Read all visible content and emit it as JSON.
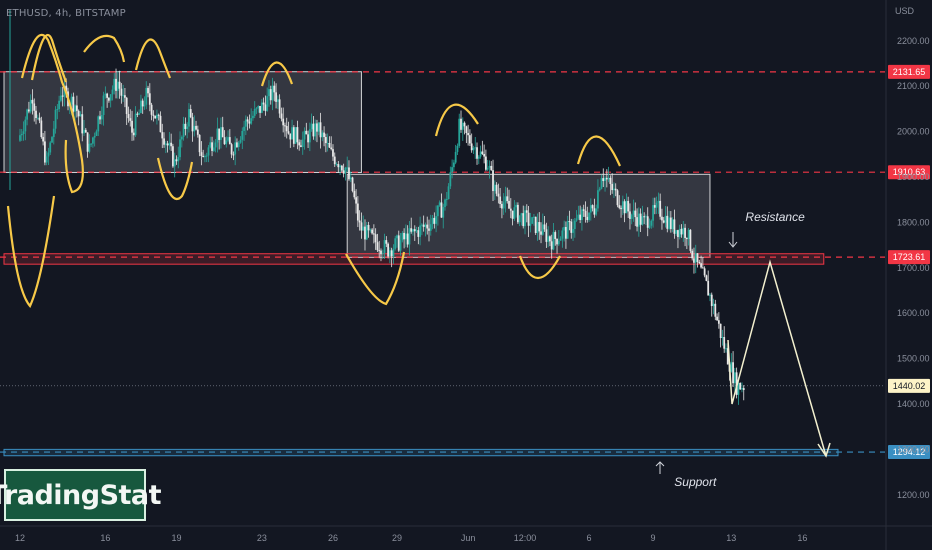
{
  "header": {
    "ticker": "ETHUSD, 4h, BITSTAMP",
    "currency": "USD"
  },
  "logo": {
    "text": "TradingStat"
  },
  "chart_data": {
    "type": "candlestick",
    "symbol": "ETHUSD",
    "interval": "4h",
    "exchange": "BITSTAMP",
    "ylim": [
      1140,
      2290
    ],
    "y_ticks": [
      1200,
      1300,
      1400,
      1500,
      1600,
      1700,
      1800,
      1900,
      2000,
      2100,
      2200
    ],
    "x_ticks": [
      "12",
      "16",
      "19",
      "23",
      "26",
      "29",
      "Jun",
      "12:00",
      "6",
      "9",
      "13",
      "16"
    ],
    "x_tick_index": [
      0,
      12,
      22,
      34,
      44,
      53,
      63,
      71,
      80,
      89,
      100,
      110
    ],
    "x_count": 116,
    "price_levels": [
      {
        "value": 2131.65,
        "label": "2131.65",
        "style": "dashed",
        "color": "#f23645"
      },
      {
        "value": 1910.63,
        "label": "1910.63",
        "style": "dashed",
        "color": "#f23645"
      },
      {
        "value": 1723.61,
        "label": "1723.61",
        "style": "dashed",
        "color": "#f23645"
      },
      {
        "value": 1294.12,
        "label": "1294.12",
        "style": "dashed",
        "color": "#3a8fc2"
      },
      {
        "value": 1440.02,
        "label": "1440.02",
        "style": "dotted",
        "color": "#8a8f9c",
        "current": true
      }
    ],
    "zones": [
      {
        "name": "upper-range",
        "x0": 0,
        "x1": 48,
        "y0": 1910,
        "y1": 2132,
        "color": "#ffffff"
      },
      {
        "name": "middle-range",
        "x0": 46,
        "x1": 97,
        "y0": 1723,
        "y1": 1906,
        "color": "#ffffff"
      },
      {
        "name": "resistance-band",
        "x0": 0,
        "x1": 113,
        "y0": 1708,
        "y1": 1731,
        "color": "#f23645"
      },
      {
        "name": "support-band",
        "x0": 0,
        "x1": 115,
        "y0": 1286,
        "y1": 1300,
        "color": "#3a8fc2"
      }
    ],
    "annotations": [
      {
        "text": "Resistance",
        "x": 101,
        "y": 1812
      },
      {
        "text": "Support",
        "x": 91,
        "y": 1228
      }
    ],
    "candles_segments": [
      [
        0,
        1980
      ],
      [
        2,
        2080
      ],
      [
        4,
        1930
      ],
      [
        6,
        2090
      ],
      [
        8,
        2060
      ],
      [
        10,
        1960
      ],
      [
        12,
        2070
      ],
      [
        14,
        2110
      ],
      [
        16,
        2000
      ],
      [
        18,
        2080
      ],
      [
        20,
        2010
      ],
      [
        22,
        1930
      ],
      [
        24,
        2040
      ],
      [
        26,
        1940
      ],
      [
        28,
        2000
      ],
      [
        30,
        1960
      ],
      [
        32,
        2020
      ],
      [
        34,
        2050
      ],
      [
        36,
        2090
      ],
      [
        38,
        2000
      ],
      [
        40,
        1980
      ],
      [
        42,
        2010
      ],
      [
        44,
        1950
      ],
      [
        46,
        1920
      ],
      [
        47,
        1870
      ],
      [
        48,
        1790
      ],
      [
        50,
        1760
      ],
      [
        52,
        1740
      ],
      [
        54,
        1760
      ],
      [
        56,
        1780
      ],
      [
        58,
        1800
      ],
      [
        60,
        1840
      ],
      [
        61,
        1920
      ],
      [
        62,
        2010
      ],
      [
        64,
        1970
      ],
      [
        66,
        1930
      ],
      [
        67,
        1870
      ],
      [
        69,
        1830
      ],
      [
        71,
        1810
      ],
      [
        73,
        1790
      ],
      [
        75,
        1760
      ],
      [
        77,
        1780
      ],
      [
        79,
        1810
      ],
      [
        81,
        1830
      ],
      [
        82,
        1910
      ],
      [
        84,
        1860
      ],
      [
        86,
        1820
      ],
      [
        88,
        1800
      ],
      [
        90,
        1830
      ],
      [
        92,
        1790
      ],
      [
        94,
        1780
      ],
      [
        95,
        1720
      ],
      [
        96,
        1690
      ],
      [
        97,
        1650
      ],
      [
        98,
        1600
      ],
      [
        99,
        1540
      ],
      [
        100,
        1490
      ],
      [
        101,
        1440
      ]
    ]
  }
}
